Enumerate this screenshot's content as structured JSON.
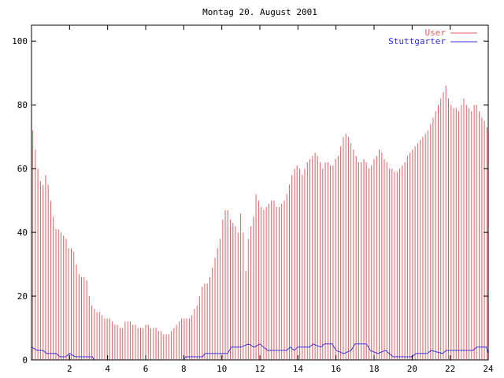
{
  "chart_data": {
    "type": "bar",
    "title": "Montag 20. August 2001",
    "xlim": [
      0,
      24
    ],
    "ylim": [
      0,
      105
    ],
    "x_ticks": [
      2,
      4,
      6,
      8,
      10,
      12,
      14,
      16,
      18,
      20,
      22,
      24
    ],
    "y_ticks": [
      0,
      20,
      40,
      60,
      80,
      100
    ],
    "legend_position": "top-right",
    "grid": false,
    "series": [
      {
        "name": "User",
        "kind": "impulses",
        "color": "#e06060",
        "values": [
          72,
          66,
          60,
          56,
          55,
          58,
          55,
          50,
          45,
          41,
          41,
          40,
          39,
          38,
          35,
          35,
          34,
          30,
          27,
          26,
          26,
          25,
          20,
          17,
          16,
          15,
          15,
          14,
          13,
          13,
          13,
          12,
          11,
          11,
          10,
          10,
          12,
          12,
          12,
          11,
          11,
          10,
          10,
          10,
          11,
          11,
          10,
          10,
          10,
          9,
          9,
          8,
          8,
          8,
          9,
          10,
          11,
          12,
          13,
          13,
          13,
          13,
          14,
          16,
          17,
          20,
          23,
          24,
          24,
          26,
          29,
          32,
          35,
          38,
          44,
          47,
          47,
          44,
          43,
          42,
          40,
          46,
          40,
          28,
          38,
          42,
          45,
          52,
          50,
          48,
          47,
          48,
          49,
          50,
          50,
          48,
          48,
          49,
          50,
          52,
          55,
          58,
          60,
          61,
          60,
          58,
          60,
          62,
          63,
          64,
          65,
          64,
          62,
          60,
          62,
          62,
          61,
          61,
          63,
          64,
          67,
          70,
          71,
          70,
          68,
          66,
          64,
          62,
          62,
          63,
          62,
          60,
          61,
          63,
          64,
          66,
          65,
          63,
          62,
          60,
          60,
          59,
          59,
          60,
          61,
          62,
          64,
          65,
          66,
          67,
          68,
          69,
          70,
          71,
          72,
          74,
          76,
          78,
          80,
          82,
          84,
          86,
          82,
          80,
          79,
          79,
          78,
          80,
          82,
          80,
          79,
          78,
          80,
          80,
          78,
          76,
          75,
          73
        ]
      },
      {
        "name": "Stuttgarter",
        "kind": "line",
        "color": "#3030e0",
        "points": [
          [
            0,
            4
          ],
          [
            0.3,
            3
          ],
          [
            0.6,
            3
          ],
          [
            0.8,
            2
          ],
          [
            1.0,
            2
          ],
          [
            1.3,
            2
          ],
          [
            1.5,
            1
          ],
          [
            1.8,
            1
          ],
          [
            2.0,
            2
          ],
          [
            2.3,
            1
          ],
          [
            3.2,
            1
          ],
          [
            3.3,
            0
          ],
          [
            8.0,
            0
          ],
          [
            8.1,
            1
          ],
          [
            9.0,
            1
          ],
          [
            9.1,
            2
          ],
          [
            10.3,
            2
          ],
          [
            10.5,
            4
          ],
          [
            11.0,
            4
          ],
          [
            11.4,
            5
          ],
          [
            11.7,
            4
          ],
          [
            12.0,
            5
          ],
          [
            12.4,
            3
          ],
          [
            13.4,
            3
          ],
          [
            13.6,
            4
          ],
          [
            13.8,
            3
          ],
          [
            14.0,
            4
          ],
          [
            14.6,
            4
          ],
          [
            14.8,
            5
          ],
          [
            15.2,
            4
          ],
          [
            15.4,
            5
          ],
          [
            15.8,
            5
          ],
          [
            16.0,
            3
          ],
          [
            16.4,
            2
          ],
          [
            16.8,
            3
          ],
          [
            17.0,
            5
          ],
          [
            17.6,
            5
          ],
          [
            17.8,
            3
          ],
          [
            18.2,
            2
          ],
          [
            18.6,
            3
          ],
          [
            19.0,
            1
          ],
          [
            20.0,
            1
          ],
          [
            20.2,
            2
          ],
          [
            20.8,
            2
          ],
          [
            21.0,
            3
          ],
          [
            21.6,
            2
          ],
          [
            21.8,
            3
          ],
          [
            23.2,
            3
          ],
          [
            23.4,
            4
          ],
          [
            23.9,
            4
          ],
          [
            24.0,
            2
          ]
        ]
      }
    ]
  }
}
